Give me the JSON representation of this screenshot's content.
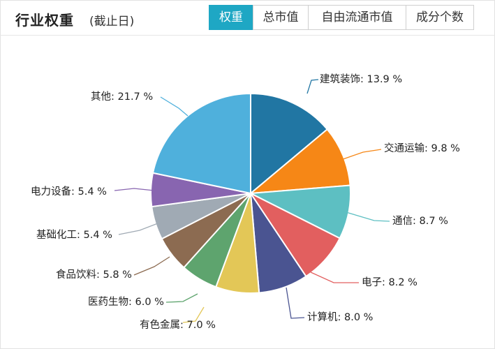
{
  "header": {
    "title": "行业权重",
    "subtitle": "(截止日)",
    "tabs": [
      {
        "label": "权重",
        "active": true
      },
      {
        "label": "总市值",
        "active": false
      },
      {
        "label": "自由流通市值",
        "active": false
      },
      {
        "label": "成分个数",
        "active": false
      }
    ]
  },
  "chart_data": {
    "type": "pie",
    "unit": "%",
    "slices": [
      {
        "name": "建筑装饰",
        "value": 13.9,
        "color": "#2176a3"
      },
      {
        "name": "交通运输",
        "value": 9.8,
        "color": "#f68716"
      },
      {
        "name": "通信",
        "value": 8.7,
        "color": "#5dbfc2"
      },
      {
        "name": "电子",
        "value": 8.2,
        "color": "#e25f5f"
      },
      {
        "name": "计算机",
        "value": 8.0,
        "color": "#4a5491"
      },
      {
        "name": "有色金属",
        "value": 7.0,
        "color": "#e3c757"
      },
      {
        "name": "医药生物",
        "value": 6.0,
        "color": "#5ea46e"
      },
      {
        "name": "食品饮料",
        "value": 5.8,
        "color": "#8c6b51"
      },
      {
        "name": "基础化工",
        "value": 5.4,
        "color": "#a0aab4"
      },
      {
        "name": "电力设备",
        "value": 5.4,
        "color": "#8865b0"
      },
      {
        "name": "其他",
        "value": 21.7,
        "color": "#4fb0dc"
      }
    ],
    "labels": [
      "建筑装饰: 13.9 %",
      "交通运输: 9.8 %",
      "通信: 8.7 %",
      "电子: 8.2 %",
      "计算机: 8.0 %",
      "有色金属: 7.0 %",
      "医药生物: 6.0 %",
      "食品饮料: 5.8 %",
      "基础化工: 5.4 %",
      "电力设备: 5.4 %",
      "其他: 21.7 %"
    ]
  }
}
